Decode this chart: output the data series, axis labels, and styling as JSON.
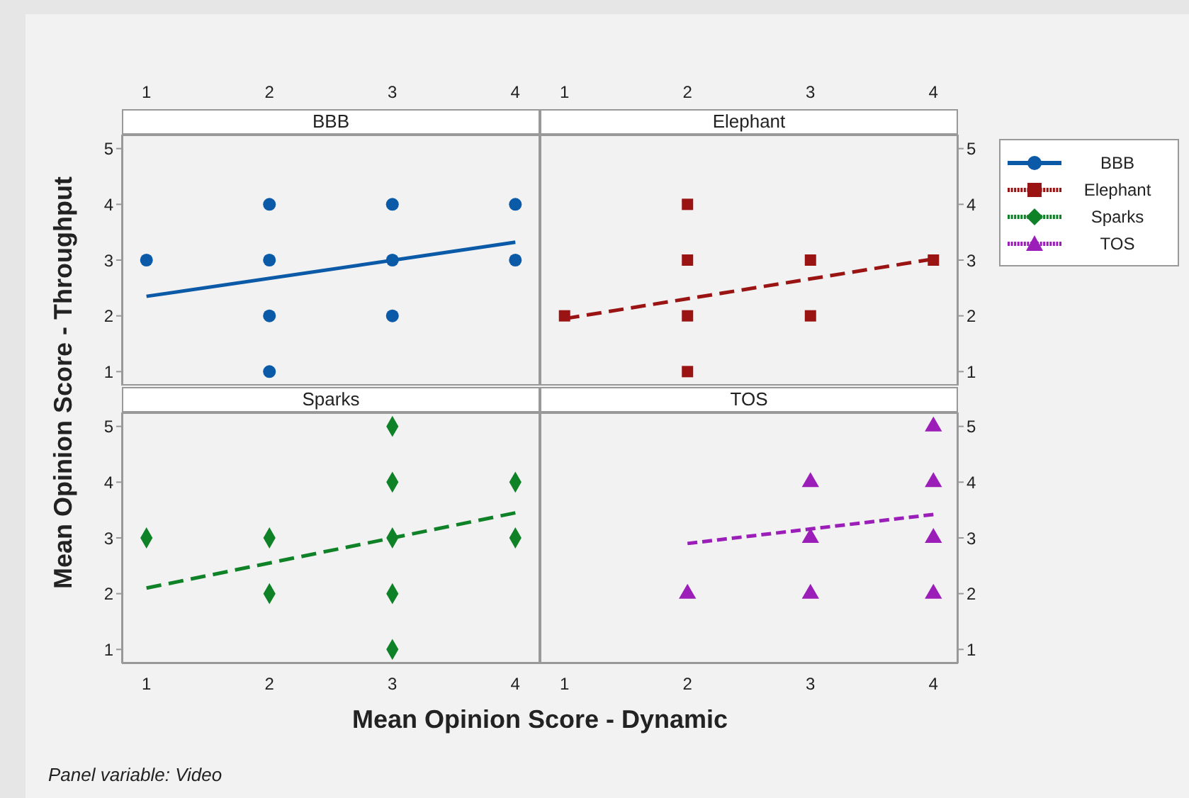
{
  "chart_data": [
    {
      "type": "scatter",
      "title": "BBB",
      "xlabel": "Mean Opinion Score - Dynamic",
      "ylabel": "Mean Opinion Score - Throughput",
      "annotations": [
        "Panel variable: Video"
      ],
      "legend": "right",
      "xlim": [
        0.8,
        4.2
      ],
      "ylim": [
        0.75,
        5.25
      ],
      "xticks": [
        1,
        2,
        3,
        4
      ],
      "yticks": [
        1,
        2,
        3,
        4,
        5
      ],
      "series": [
        {
          "name": "BBB",
          "color": "#0b5aa8",
          "marker": "circle",
          "x": [
            1,
            2,
            2,
            2,
            2,
            3,
            3,
            3,
            4,
            4
          ],
          "values": [
            3,
            4,
            3,
            2,
            1,
            4,
            3,
            2,
            4,
            3
          ]
        },
        {
          "type": "line",
          "color": "#0b5aa8",
          "line_style": "solid",
          "x": [
            1,
            4
          ],
          "values": [
            2.35,
            3.32
          ]
        }
      ]
    },
    {
      "type": "scatter",
      "title": "Elephant",
      "legend": "right",
      "xlim": [
        0.8,
        4.2
      ],
      "ylim": [
        0.75,
        5.25
      ],
      "xticks": [
        1,
        2,
        3,
        4
      ],
      "yticks": [
        1,
        2,
        3,
        4,
        5
      ],
      "series": [
        {
          "name": "Elephant",
          "color": "#9b1414",
          "marker": "square",
          "x": [
            1,
            2,
            2,
            2,
            2,
            3,
            3,
            4
          ],
          "values": [
            2,
            4,
            3,
            2,
            1,
            3,
            2,
            3
          ]
        },
        {
          "type": "line",
          "color": "#9b1414",
          "line_style": "dashed",
          "x": [
            1,
            4
          ],
          "values": [
            1.95,
            3.02
          ]
        }
      ]
    },
    {
      "type": "scatter",
      "title": "Sparks",
      "legend": "right",
      "xlim": [
        0.8,
        4.2
      ],
      "ylim": [
        0.75,
        5.25
      ],
      "xticks": [
        1,
        2,
        3,
        4
      ],
      "yticks": [
        1,
        2,
        3,
        4,
        5
      ],
      "series": [
        {
          "name": "Sparks",
          "color": "#0f8228",
          "marker": "diamond",
          "x": [
            1,
            2,
            2,
            3,
            3,
            3,
            3,
            3,
            4,
            4
          ],
          "values": [
            3,
            3,
            2,
            5,
            4,
            3,
            2,
            1,
            4,
            3
          ]
        },
        {
          "type": "line",
          "color": "#0f8228",
          "line_style": "dashed",
          "x": [
            1,
            4
          ],
          "values": [
            2.1,
            3.45
          ]
        }
      ]
    },
    {
      "type": "scatter",
      "title": "TOS",
      "legend": "right",
      "xlim": [
        0.8,
        4.2
      ],
      "ylim": [
        0.75,
        5.25
      ],
      "xticks": [
        1,
        2,
        3,
        4
      ],
      "yticks": [
        1,
        2,
        3,
        4,
        5
      ],
      "series": [
        {
          "name": "TOS",
          "color": "#9b1eb9",
          "marker": "triangle",
          "x": [
            2,
            3,
            3,
            3,
            4,
            4,
            4,
            4
          ],
          "values": [
            2,
            4,
            3,
            2,
            5,
            4,
            3,
            2
          ]
        },
        {
          "type": "line",
          "color": "#9b1eb9",
          "line_style": "dashed",
          "x": [
            2,
            4
          ],
          "values": [
            2.9,
            3.42
          ]
        }
      ]
    }
  ]
}
